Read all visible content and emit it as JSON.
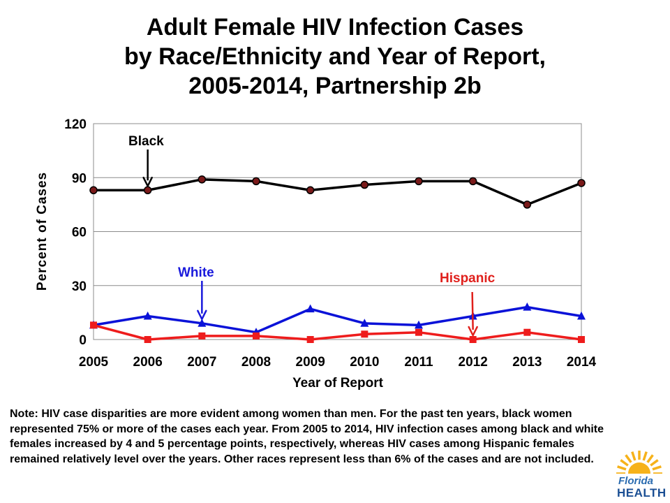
{
  "title": {
    "line1": "Adult Female HIV Infection Cases",
    "line2": "by Race/Ethnicity and Year of Report,",
    "line3": "2005-2014, Partnership 2b"
  },
  "note": "Note: HIV case disparities are more evident among women than men.  For the past ten years, black women represented 75% or more of the cases each year.  From 2005 to 2014, HIV infection cases among black and white females increased by 4 and 5 percentage points, respectively, whereas HIV cases among Hispanic females remained relatively level over the years. Other races represent less than 6% of the cases and are not included.",
  "logo": {
    "line1": "Florida",
    "line2": "HEALTH"
  },
  "chart_data": {
    "type": "line",
    "x": [
      "2005",
      "2006",
      "2007",
      "2008",
      "2009",
      "2010",
      "2011",
      "2012",
      "2013",
      "2014"
    ],
    "xlabel": "Year of Report",
    "ylabel": "Percent of Cases",
    "ylim": [
      0,
      120
    ],
    "yticks": [
      0,
      30,
      60,
      90,
      120
    ],
    "grid": "horizontal",
    "legend": "none",
    "series": [
      {
        "name": "Black",
        "color": "#000000",
        "marker": "circle",
        "marker_fill": "#7a1a1a",
        "values": [
          83,
          83,
          89,
          88,
          83,
          86,
          88,
          88,
          75,
          87
        ]
      },
      {
        "name": "White",
        "color": "#0a12d8",
        "marker": "triangle",
        "marker_fill": "#0a12d8",
        "values": [
          8,
          13,
          9,
          4,
          17,
          9,
          8,
          13,
          18,
          13
        ]
      },
      {
        "name": "Hispanic",
        "color": "#ee1c1c",
        "marker": "square",
        "marker_fill": "#ee1c1c",
        "values": [
          8,
          0,
          2,
          2,
          0,
          3,
          4,
          0,
          4,
          0
        ]
      }
    ],
    "annotations": [
      {
        "text": "Black",
        "series": 0,
        "point_index": 1,
        "color": "#000000"
      },
      {
        "text": "White",
        "series": 1,
        "point_index": 2,
        "color": "#1a1adc"
      },
      {
        "text": "Hispanic",
        "series": 2,
        "point_index": 7,
        "color": "#e0201c"
      }
    ]
  }
}
